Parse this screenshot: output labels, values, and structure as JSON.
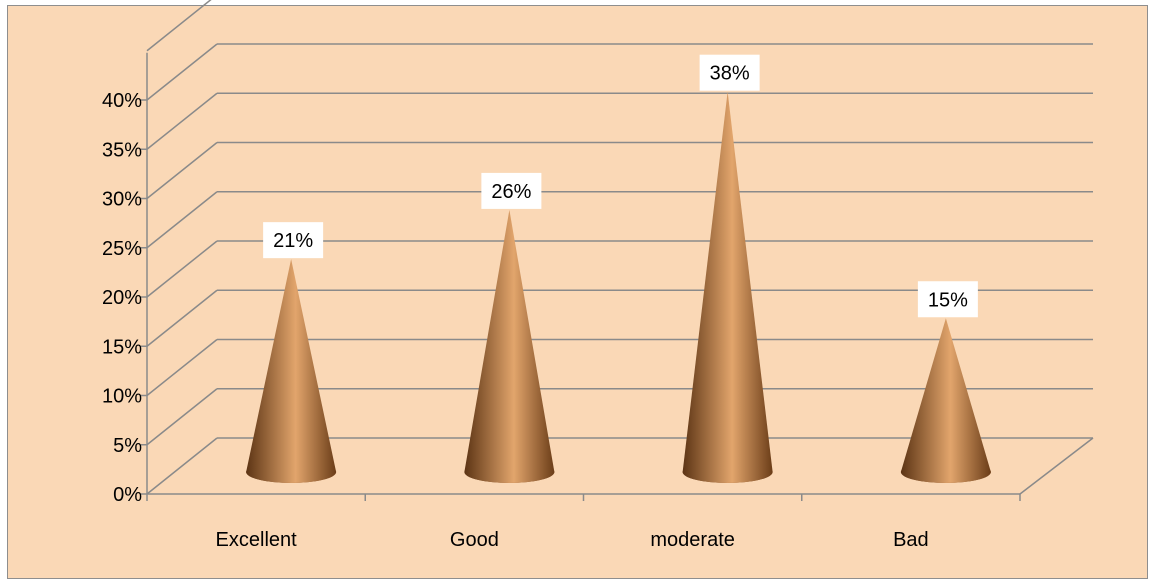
{
  "chart_data": {
    "type": "bar",
    "bar_shape": "cone",
    "three_d": true,
    "categories": [
      "Excellent",
      "Good",
      "moderate",
      "Bad"
    ],
    "values": [
      21,
      26,
      38,
      15
    ],
    "data_labels": [
      "21%",
      "26%",
      "38%",
      "15%"
    ],
    "ylim": [
      0,
      45
    ],
    "y_ticks": [
      0,
      5,
      10,
      15,
      20,
      25,
      30,
      35,
      40
    ],
    "y_tick_labels": [
      "0%",
      "5%",
      "10%",
      "15%",
      "20%",
      "25%",
      "30%",
      "35%",
      "40%"
    ],
    "grid": true,
    "legend": false,
    "colors": {
      "background": "#fad8b6",
      "grid": "#8a8a8a",
      "cone_dark": "#5c3414",
      "cone_light": "#e2a56c",
      "label_box": "#ffffff"
    }
  }
}
